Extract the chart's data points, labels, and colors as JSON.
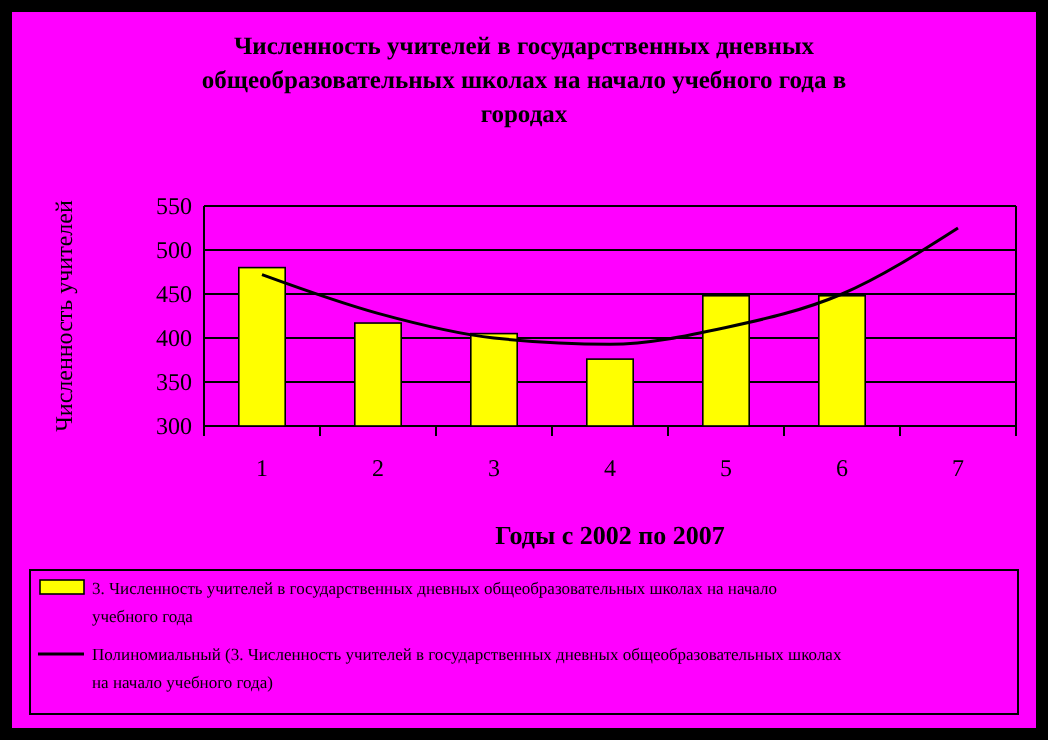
{
  "chart_data": {
    "type": "bar",
    "title": "Численность учителей в государственных дневных общеобразовательных школах на начало учебного года в городах",
    "xlabel": "Годы с 2002 по 2007",
    "ylabel": "Численность учителей",
    "categories": [
      "1",
      "2",
      "3",
      "4",
      "5",
      "6",
      "7"
    ],
    "series": [
      {
        "name": "3. Численность учителей в государственных дневных общеобразовательных школах на начало учебного года",
        "color": "#ffff00",
        "values": [
          480,
          417,
          405,
          376,
          448,
          448,
          null
        ]
      },
      {
        "name": "Полиномиальный (3. Численность учителей в государственных дневных общеобразовательных школах на начало учебного года)",
        "type": "line",
        "color": "#000000",
        "values": [
          472,
          428,
          400,
          393,
          412,
          450,
          525
        ]
      }
    ],
    "ylim": [
      300,
      550
    ],
    "yticks": [
      300,
      350,
      400,
      450,
      500,
      550
    ],
    "grid": "y",
    "legend": "bottom"
  }
}
